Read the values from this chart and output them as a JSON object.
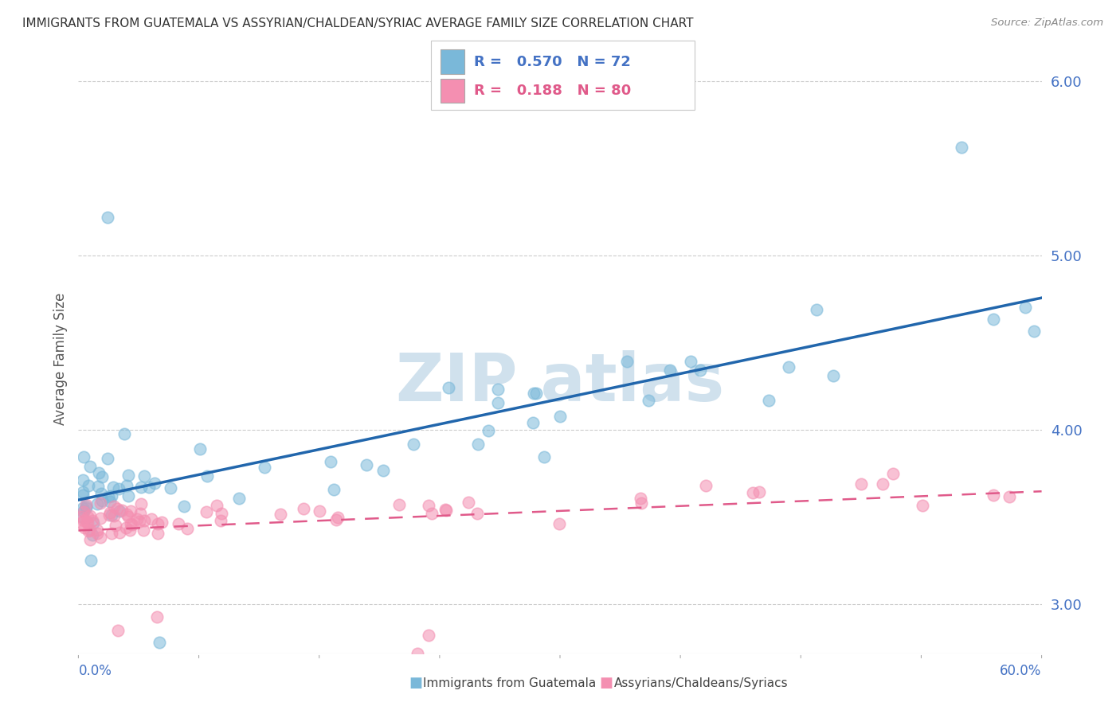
{
  "title": "IMMIGRANTS FROM GUATEMALA VS ASSYRIAN/CHALDEAN/SYRIAC AVERAGE FAMILY SIZE CORRELATION CHART",
  "source": "Source: ZipAtlas.com",
  "ylabel": "Average Family Size",
  "xlim": [
    0.0,
    60.0
  ],
  "ylim": [
    2.72,
    6.1
  ],
  "yticks": [
    3.0,
    4.0,
    5.0,
    6.0
  ],
  "series1_label": "Immigrants from Guatemala",
  "series1_color": "#7ab8d9",
  "series1_line_color": "#2166ac",
  "series1_R": "0.570",
  "series1_N": "72",
  "series2_label": "Assyrians/Chaldeans/Syriacs",
  "series2_color": "#f48fb1",
  "series2_line_color": "#e05a8a",
  "series2_R": "0.188",
  "series2_N": "80",
  "watermark_color": "#c8dcea",
  "background_color": "#ffffff",
  "grid_color": "#cccccc",
  "title_color": "#333333",
  "axis_label_color": "#4472c4",
  "ylabel_color": "#555555",
  "source_color": "#888888",
  "legend_text_color1": "#4472c4",
  "legend_text_color2": "#e05a8a"
}
